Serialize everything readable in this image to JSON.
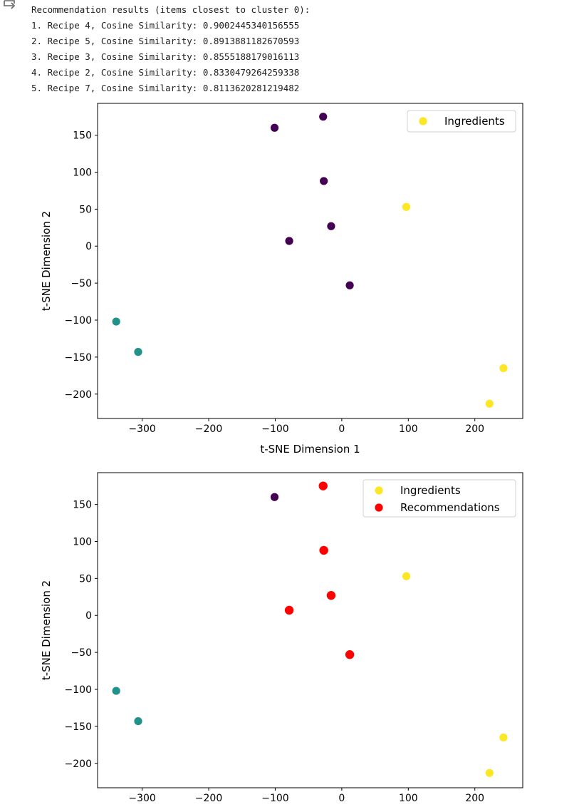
{
  "output": {
    "icon": "output-redirect-icon",
    "lines": [
      "Recommendation results (items closest to cluster 0):",
      "1. Recipe 4, Cosine Similarity: 0.9002445340156555",
      "2. Recipe 5, Cosine Similarity: 0.8913881182670593",
      "3. Recipe 3, Cosine Similarity: 0.8555188179016113",
      "4. Recipe 2, Cosine Similarity: 0.8330479264259338",
      "5. Recipe 7, Cosine Similarity: 0.8113620281219482"
    ]
  },
  "colors": {
    "cluster0": "#440154",
    "cluster1": "#21918c",
    "cluster2": "#fde725",
    "recommendation": "#ff0000"
  },
  "chart_data": [
    {
      "type": "scatter",
      "title": "",
      "xlabel": "t-SNE Dimension 1",
      "ylabel": "t-SNE Dimension 2",
      "xlim": [
        -367,
        272
      ],
      "ylim": [
        -233,
        193
      ],
      "xticks": [
        -300,
        -200,
        -100,
        0,
        100,
        200
      ],
      "yticks": [
        -200,
        -150,
        -100,
        -50,
        0,
        50,
        100,
        150
      ],
      "legend_location": "top-right",
      "legend": [
        "Ingredients"
      ],
      "points": [
        {
          "x": -28,
          "y": 175,
          "cluster": 0
        },
        {
          "x": -101,
          "y": 160,
          "cluster": 0
        },
        {
          "x": -27,
          "y": 88,
          "cluster": 0
        },
        {
          "x": -16,
          "y": 27,
          "cluster": 0
        },
        {
          "x": -79,
          "y": 7,
          "cluster": 0
        },
        {
          "x": 12,
          "y": -53,
          "cluster": 0
        },
        {
          "x": -339,
          "y": -102,
          "cluster": 1
        },
        {
          "x": -306,
          "y": -143,
          "cluster": 1
        },
        {
          "x": 97,
          "y": 53,
          "cluster": 2
        },
        {
          "x": 243,
          "y": -165,
          "cluster": 2
        },
        {
          "x": 222,
          "y": -213,
          "cluster": 2
        }
      ]
    },
    {
      "type": "scatter",
      "title": "",
      "xlabel": "",
      "ylabel": "t-SNE Dimension 2",
      "xlim": [
        -367,
        272
      ],
      "ylim": [
        -233,
        193
      ],
      "xticks": [
        -300,
        -200,
        -100,
        0,
        100,
        200
      ],
      "yticks": [
        -200,
        -150,
        -100,
        -50,
        0,
        50,
        100,
        150
      ],
      "legend_location": "top-right",
      "legend": [
        "Ingredients",
        "Recommendations"
      ],
      "points": [
        {
          "x": -28,
          "y": 175,
          "cluster": 0
        },
        {
          "x": -101,
          "y": 160,
          "cluster": 0
        },
        {
          "x": -27,
          "y": 88,
          "cluster": 0
        },
        {
          "x": -16,
          "y": 27,
          "cluster": 0
        },
        {
          "x": -79,
          "y": 7,
          "cluster": 0
        },
        {
          "x": 12,
          "y": -53,
          "cluster": 0
        },
        {
          "x": -339,
          "y": -102,
          "cluster": 1
        },
        {
          "x": -306,
          "y": -143,
          "cluster": 1
        },
        {
          "x": 97,
          "y": 53,
          "cluster": 2
        },
        {
          "x": 243,
          "y": -165,
          "cluster": 2
        },
        {
          "x": 222,
          "y": -213,
          "cluster": 2
        }
      ],
      "recommendations": [
        {
          "x": -28,
          "y": 175
        },
        {
          "x": -27,
          "y": 88
        },
        {
          "x": -16,
          "y": 27
        },
        {
          "x": -79,
          "y": 7
        },
        {
          "x": 12,
          "y": -53
        }
      ]
    }
  ]
}
